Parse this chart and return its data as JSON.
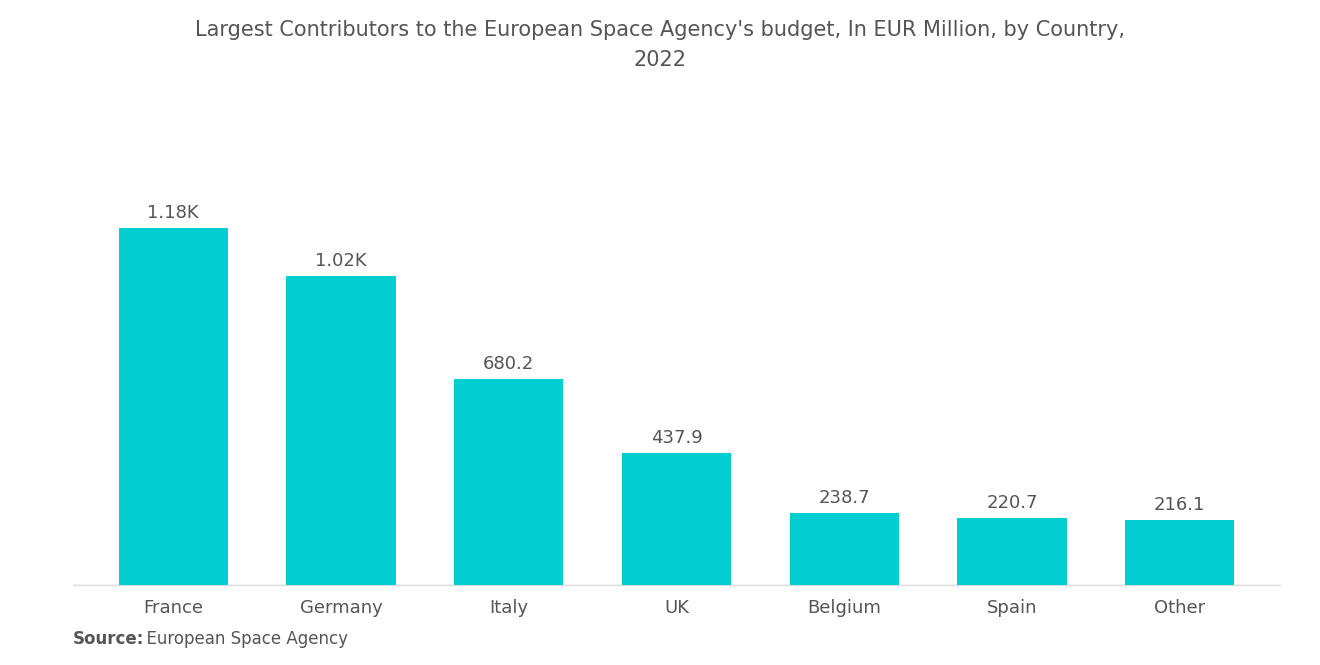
{
  "title_line1": "Largest Contributors to the European Space Agency's budget, In EUR Million, by Country,",
  "title_line2": "2022",
  "categories": [
    "France",
    "Germany",
    "Italy",
    "UK",
    "Belgium",
    "Spain",
    "Other"
  ],
  "values": [
    1180,
    1020,
    680.2,
    437.9,
    238.7,
    220.7,
    216.1
  ],
  "labels": [
    "1.18K",
    "1.02K",
    "680.2",
    "437.9",
    "238.7",
    "220.7",
    "216.1"
  ],
  "bar_color": "#00CED1",
  "background_color": "#FFFFFF",
  "title_color": "#555555",
  "label_color": "#555555",
  "xtick_color": "#555555",
  "source_bold": "Source:",
  "source_normal": "  European Space Agency",
  "ylim": [
    0,
    1450
  ],
  "title_fontsize": 15,
  "label_fontsize": 13,
  "xtick_fontsize": 13,
  "source_fontsize": 12,
  "bar_width": 0.65
}
